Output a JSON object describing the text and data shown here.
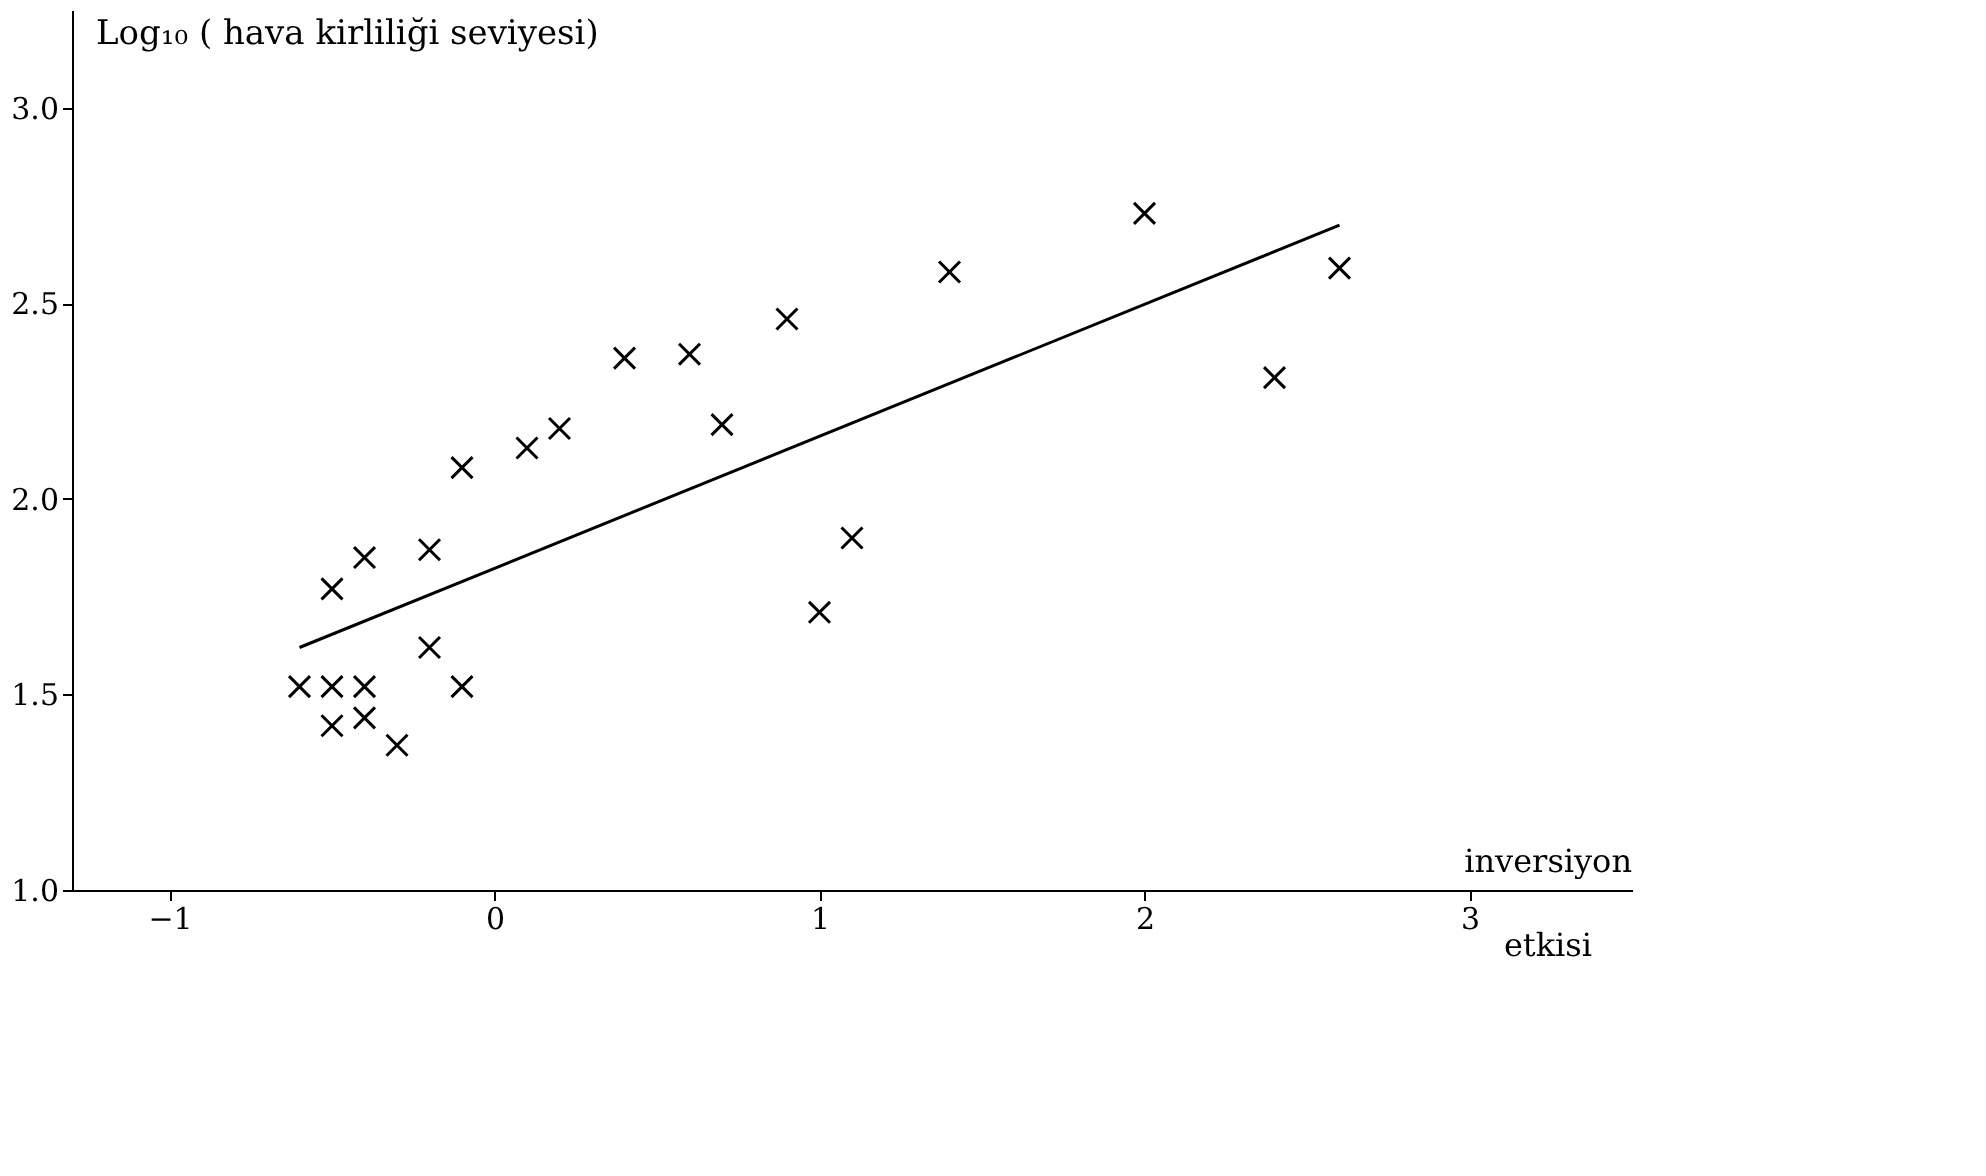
{
  "chart_data": {
    "type": "scatter",
    "xlabel": "inversiyon etkisi",
    "ylabel": "Log₁₀ ( hava kirliliği seviyesi)",
    "xlim": [
      -1.3,
      3.5
    ],
    "ylim": [
      1.0,
      3.25
    ],
    "xticks": [
      -1,
      0,
      1,
      2,
      3
    ],
    "yticks": [
      {
        "value": 1,
        "label": "1.0"
      },
      1.5,
      {
        "value": 2,
        "label": "2.0"
      },
      2.5,
      {
        "value": 3,
        "label": "3.0"
      }
    ],
    "grid": false,
    "marker": "cross",
    "series": [
      {
        "color": "#000000",
        "x": [
          -0.6,
          -0.5,
          -0.4,
          -0.5,
          -0.4,
          -0.3,
          -0.5,
          -0.4,
          -0.2,
          -0.2,
          -0.1,
          -0.1,
          0.1,
          0.2,
          0.4,
          0.6,
          0.7,
          0.9,
          1.0,
          1.1,
          1.4,
          2.0,
          2.4,
          2.6
        ],
        "values": [
          1.52,
          1.52,
          1.52,
          1.42,
          1.44,
          1.37,
          1.77,
          1.85,
          1.87,
          1.62,
          1.52,
          2.08,
          2.13,
          2.18,
          2.36,
          2.37,
          2.19,
          2.46,
          1.71,
          1.9,
          2.58,
          2.73,
          2.31,
          2.59
        ]
      },
      {
        "type": "line",
        "color": "#000000",
        "x": [
          -0.6,
          2.6
        ],
        "values": [
          1.62,
          2.7
        ],
        "line_style": "solid",
        "marker": "none"
      }
    ]
  }
}
